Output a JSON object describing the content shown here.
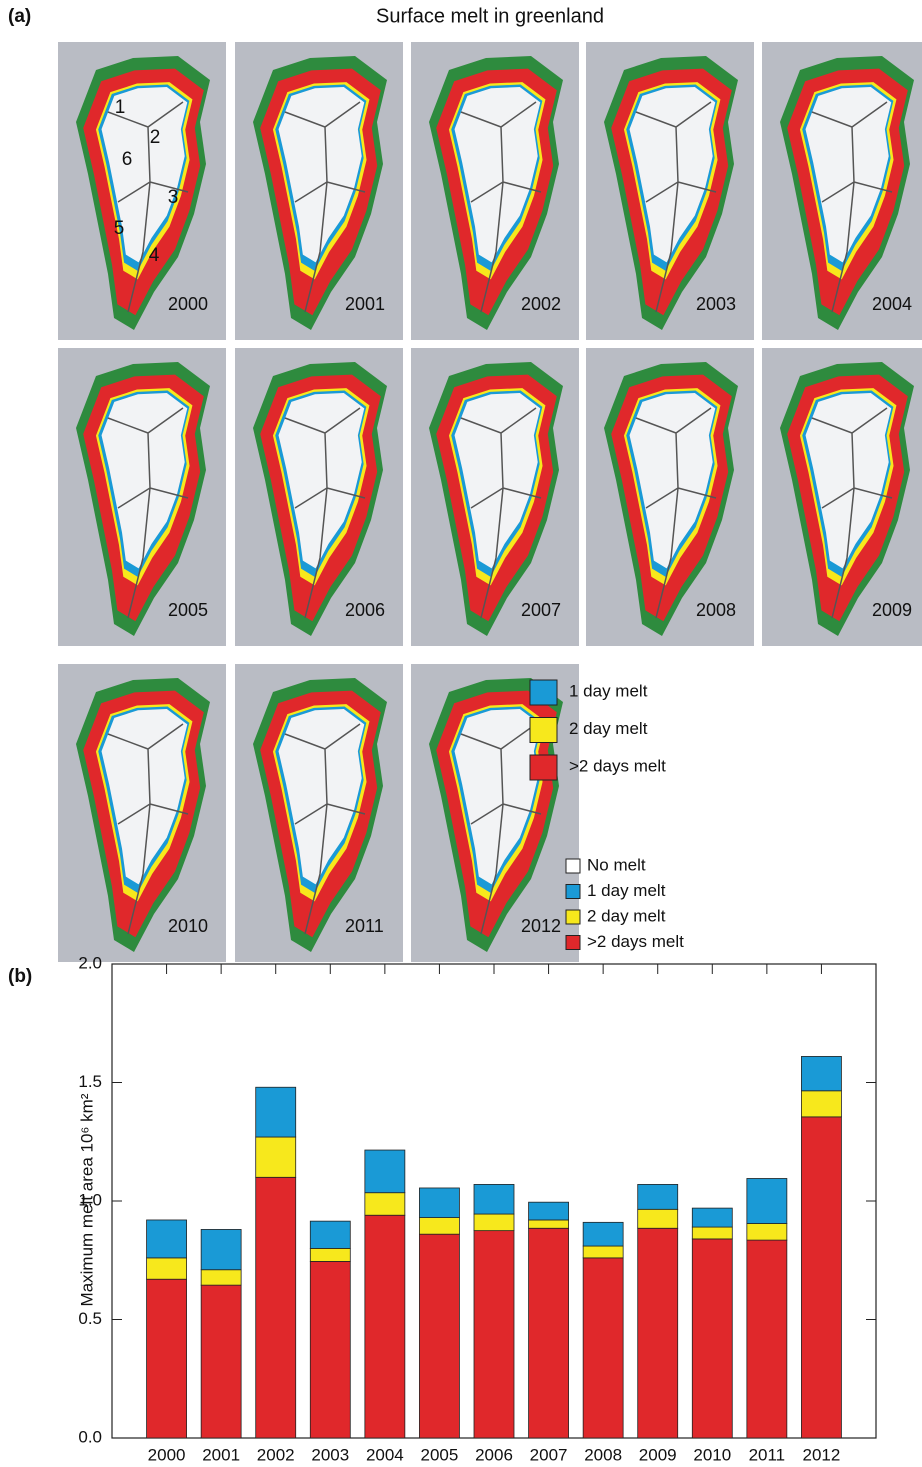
{
  "figure": {
    "panel_label": "(a)",
    "title": "Surface melt in greenland",
    "map_years": [
      "2000",
      "2001",
      "2002",
      "2003",
      "2004",
      "2005",
      "2006",
      "2007",
      "2008",
      "2009",
      "2010",
      "2011",
      "2012"
    ],
    "region_labels": [
      "1",
      "2",
      "3",
      "4",
      "5",
      "6"
    ],
    "map_legend": [
      {
        "label": "No melt",
        "color": "#ffffff"
      },
      {
        "label": "1 day melt",
        "color": "#1a9ad6"
      },
      {
        "label": "2 day melt",
        "color": "#f7e81c"
      },
      {
        "label": ">2 days melt",
        "color": "#e0282b"
      }
    ]
  },
  "chart_data": {
    "type": "stacked_bar",
    "panel_label": "(b)",
    "ylabel": "Maximum melt area 10⁶ km²",
    "categories": [
      "2000",
      "2001",
      "2002",
      "2003",
      "2004",
      "2005",
      "2006",
      "2007",
      "2008",
      "2009",
      "2010",
      "2011",
      "2012"
    ],
    "series": [
      {
        "name": "1 day melt",
        "color": "#1a9ad6",
        "values": [
          0.16,
          0.17,
          0.21,
          0.115,
          0.18,
          0.125,
          0.125,
          0.075,
          0.1,
          0.105,
          0.08,
          0.19,
          0.145
        ]
      },
      {
        "name": "2 day melt",
        "color": "#f7e81c",
        "values": [
          0.09,
          0.065,
          0.17,
          0.055,
          0.095,
          0.07,
          0.07,
          0.035,
          0.05,
          0.08,
          0.05,
          0.07,
          0.11
        ]
      },
      {
        "name": ">2 days melt",
        "color": "#e0282b",
        "values": [
          0.67,
          0.645,
          1.1,
          0.745,
          0.94,
          0.86,
          0.875,
          0.885,
          0.76,
          0.885,
          0.84,
          0.835,
          1.355
        ]
      }
    ],
    "ylim": [
      0,
      2
    ],
    "yticks": [
      {
        "value": 0,
        "label": "0.0"
      },
      0.5,
      {
        "value": 1,
        "label": "1.0"
      },
      1.5,
      {
        "value": 2,
        "label": "2.0"
      }
    ]
  }
}
